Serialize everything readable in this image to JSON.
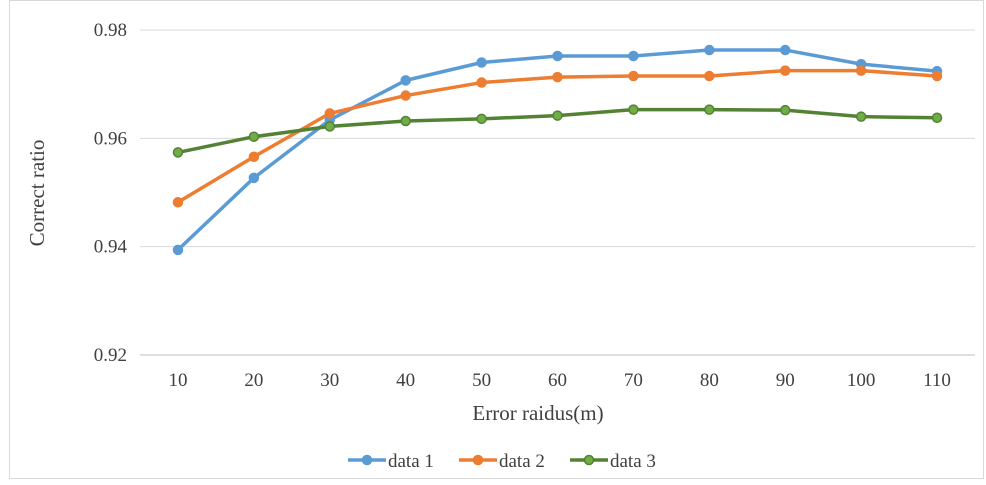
{
  "chart_data": {
    "type": "line",
    "xlabel": "Error raidus(m)",
    "ylabel": "Correct ratio",
    "x": [
      10,
      20,
      30,
      40,
      50,
      60,
      70,
      80,
      90,
      100,
      110
    ],
    "ylim": [
      0.92,
      0.98
    ],
    "yticks": [
      0.92,
      0.94,
      0.96,
      0.98
    ],
    "ytick_labels": [
      "0.92",
      "0.94",
      "0.96",
      "0.98"
    ],
    "grid": true,
    "legend_position": "bottom",
    "series": [
      {
        "name": "data 1",
        "color": "#5b9bd5",
        "marker_fill": "#5b9bd5",
        "values": [
          0.9394,
          0.9527,
          0.9634,
          0.9707,
          0.974,
          0.9752,
          0.9752,
          0.9763,
          0.9763,
          0.9737,
          0.9724
        ]
      },
      {
        "name": "data 2",
        "color": "#ed7d31",
        "marker_fill": "#ed7d31",
        "values": [
          0.9482,
          0.9566,
          0.9646,
          0.9679,
          0.9703,
          0.9713,
          0.9715,
          0.9715,
          0.9725,
          0.9725,
          0.9715
        ]
      },
      {
        "name": "data 3",
        "color": "#548235",
        "marker_fill": "#70ad47",
        "values": [
          0.9574,
          0.9603,
          0.9622,
          0.9632,
          0.9636,
          0.9642,
          0.9653,
          0.9653,
          0.9652,
          0.964,
          0.9638
        ]
      }
    ]
  }
}
